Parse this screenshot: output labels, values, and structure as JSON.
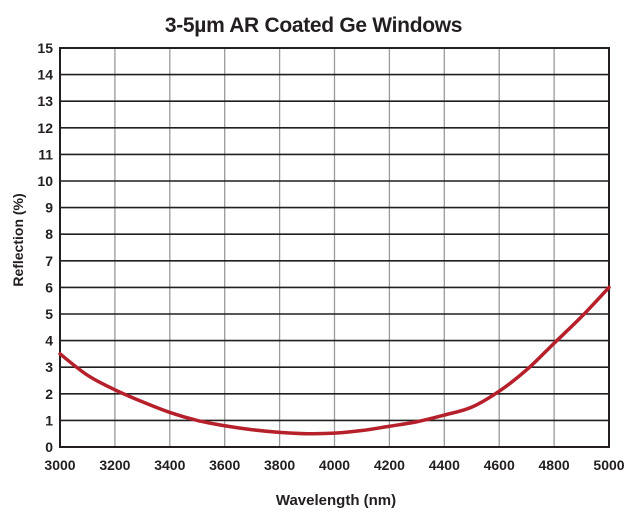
{
  "chart_data": {
    "type": "line",
    "title": "3-5µm AR Coated Ge Windows",
    "xlabel": "Wavelength (nm)",
    "ylabel": "Reflection (%)",
    "xlim": [
      3000,
      5000
    ],
    "ylim": [
      0,
      15
    ],
    "xticks": [
      3000,
      3200,
      3400,
      3600,
      3800,
      4000,
      4200,
      4400,
      4600,
      4800,
      5000
    ],
    "yticks": [
      0,
      1,
      2,
      3,
      4,
      5,
      6,
      7,
      8,
      9,
      10,
      11,
      12,
      13,
      14,
      15
    ],
    "grid": true,
    "legend": "none",
    "series": [
      {
        "color": "#b5202b",
        "x": [
          3000,
          3100,
          3200,
          3300,
          3400,
          3500,
          3600,
          3700,
          3800,
          3900,
          4000,
          4100,
          4200,
          4300,
          4400,
          4500,
          4600,
          4700,
          4800,
          4900,
          5000
        ],
        "y": [
          3.5,
          2.7,
          2.15,
          1.7,
          1.3,
          1.0,
          0.8,
          0.65,
          0.55,
          0.5,
          0.52,
          0.62,
          0.78,
          0.95,
          1.2,
          1.5,
          2.1,
          2.9,
          3.9,
          4.9,
          6.0
        ]
      }
    ]
  }
}
